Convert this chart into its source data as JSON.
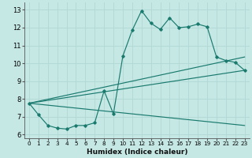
{
  "bg_color": "#c5e8e5",
  "grid_color": "#b0d8d5",
  "line_color": "#1a7a6e",
  "xlim": [
    -0.5,
    23.5
  ],
  "ylim": [
    5.8,
    13.4
  ],
  "xticks": [
    0,
    1,
    2,
    3,
    4,
    5,
    6,
    7,
    8,
    9,
    10,
    11,
    12,
    13,
    14,
    15,
    16,
    17,
    18,
    19,
    20,
    21,
    22,
    23
  ],
  "yticks": [
    6,
    7,
    8,
    9,
    10,
    11,
    12,
    13
  ],
  "xlabel": "Humidex (Indice chaleur)",
  "main_x": [
    0,
    1,
    2,
    3,
    4,
    5,
    6,
    7,
    8,
    9,
    10,
    11,
    12,
    13,
    14,
    15,
    16,
    17,
    18,
    19,
    20,
    21,
    22,
    23
  ],
  "main_y": [
    7.75,
    7.1,
    6.5,
    6.35,
    6.3,
    6.5,
    6.5,
    6.65,
    8.45,
    7.15,
    10.4,
    11.85,
    12.95,
    12.25,
    11.9,
    12.55,
    12.0,
    12.05,
    12.2,
    12.05,
    10.35,
    10.15,
    10.05,
    9.6
  ],
  "trend1_x": [
    0,
    23
  ],
  "trend1_y": [
    7.75,
    10.35
  ],
  "trend2_x": [
    0,
    23
  ],
  "trend2_y": [
    7.75,
    9.6
  ],
  "trend3_x": [
    0,
    23
  ],
  "trend3_y": [
    7.75,
    6.5
  ]
}
